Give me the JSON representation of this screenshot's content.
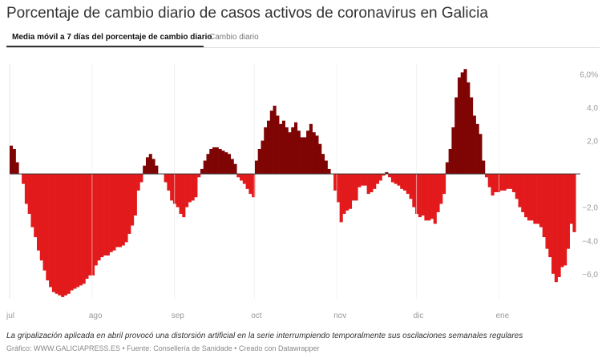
{
  "title": "Porcentaje de cambio diario de casos activos de coronavirus en Galicia",
  "tabs": [
    {
      "label": "Media móvil a 7 días del porcentaje de cambio diario",
      "active": true
    },
    {
      "label": "Cambio diario",
      "active": false
    }
  ],
  "caption": "La gripalización aplicada en abril provocó una distorsión artificial en la serie interrumpiendo temporalmente sus oscilaciones semanales regulares",
  "footer": "Gráfico: WWW.GALICIAPRESS.ES • Fuente: Consellería de Sanidade • Creado con Datawrapper",
  "colors": {
    "positive": "#7f0404",
    "negative": "#e31a1c"
  },
  "chart_data": {
    "type": "bar",
    "title": "Porcentaje de cambio diario de casos activos de coronavirus en Galicia",
    "x_start": "2020-07-01",
    "x_end": "2021-01-31",
    "x_ticks": [
      {
        "label": "jul",
        "date": "2020-07-01"
      },
      {
        "label": "ago",
        "date": "2020-08-01"
      },
      {
        "label": "sep",
        "date": "2020-09-01"
      },
      {
        "label": "oct",
        "date": "2020-10-01"
      },
      {
        "label": "nov",
        "date": "2020-11-01"
      },
      {
        "label": "dic",
        "date": "2020-12-01"
      },
      {
        "label": "ene",
        "date": "2021-01-01"
      }
    ],
    "y_ticks": [
      {
        "value": 6,
        "label": "6,0%"
      },
      {
        "value": 4,
        "label": "4,0"
      },
      {
        "value": 2,
        "label": "2,0"
      },
      {
        "value": -2,
        "label": "−2,0"
      },
      {
        "value": -4,
        "label": "−4,0"
      },
      {
        "value": -6,
        "label": "−6,0"
      }
    ],
    "ylim": [
      -7.5,
      6.6
    ],
    "grid": true,
    "values": [
      1.7,
      1.5,
      0.7,
      0,
      -0.6,
      -1.8,
      -2.4,
      -3.2,
      -3.8,
      -4.6,
      -5.2,
      -5.8,
      -6.4,
      -6.8,
      -7.1,
      -7.2,
      -7.3,
      -7.4,
      -7.3,
      -7.2,
      -7.0,
      -6.9,
      -6.8,
      -6.7,
      -6.6,
      -6.3,
      -6.1,
      -6.1,
      -5.5,
      -5.2,
      -5.0,
      -4.9,
      -4.9,
      -4.7,
      -4.6,
      -4.4,
      -4.4,
      -4.3,
      -4.1,
      -3.6,
      -3.1,
      -2.5,
      -1.0,
      -0.5,
      0.5,
      1.0,
      1.2,
      0.9,
      0.5,
      0,
      0,
      -0.5,
      -1.0,
      -1.6,
      -1.8,
      -2.0,
      -2.4,
      -2.6,
      -2.0,
      -1.7,
      -1.6,
      -1.4,
      -0.2,
      0.3,
      0.8,
      1.2,
      1.5,
      1.6,
      1.6,
      1.5,
      1.4,
      1.3,
      1.2,
      0.9,
      0.6,
      -0.2,
      -0.4,
      -0.6,
      -0.9,
      -1.2,
      -1.4,
      0.8,
      1.5,
      2.0,
      2.8,
      3.2,
      3.8,
      4.1,
      3.5,
      3.0,
      3.2,
      2.8,
      2.5,
      2.8,
      3.1,
      2.6,
      2.2,
      2.2,
      2.6,
      3.0,
      2.5,
      2.3,
      1.8,
      1.2,
      0.8,
      0.3,
      0,
      -1.0,
      -1.7,
      -2.9,
      -2.4,
      -2.2,
      -2.1,
      -1.6,
      -1.6,
      -0.8,
      -0.7,
      -0.7,
      -1.2,
      -1.1,
      -0.9,
      -0.6,
      -0.4,
      -0.1,
      0.1,
      -0.2,
      -0.5,
      -0.6,
      -0.7,
      -0.9,
      -1.0,
      -1.2,
      -1.5,
      -2.0,
      -2.4,
      -2.6,
      -2.5,
      -2.8,
      -2.8,
      -2.7,
      -3.0,
      -2.3,
      -1.8,
      -1.2,
      0.7,
      1.5,
      2.8,
      4.6,
      5.8,
      6.1,
      6.3,
      5.5,
      4.6,
      3.5,
      3.0,
      2.4,
      0.8,
      -0.2,
      -0.8,
      -1.3,
      -1.1,
      -1.1,
      -1.0,
      -1.0,
      -0.9,
      -0.9,
      -1.1,
      -1.5,
      -2.0,
      -2.3,
      -2.6,
      -2.8,
      -2.8,
      -3.0,
      -3.0,
      -3.2,
      -3.8,
      -4.5,
      -5.0,
      -6.0,
      -6.5,
      -6.2,
      -5.6,
      -5.5,
      -4.5,
      -3.0,
      -3.5,
      0
    ]
  }
}
